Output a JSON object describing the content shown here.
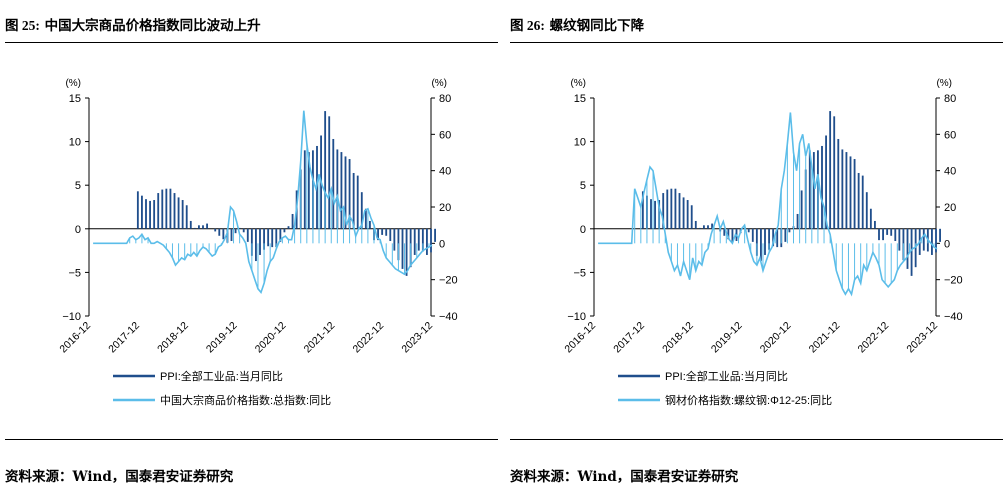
{
  "charts": [
    {
      "title_prefix": "图 25:",
      "title_text": "中国大宗商品价格指数同比波动上升",
      "source": "资料来源：Wind，国泰君安证券研究",
      "chart_data": {
        "type": "bar+line",
        "left_unit": "(%)",
        "right_unit": "(%)",
        "left_ticks": [
          "15",
          "10",
          "5",
          "0",
          "−5",
          "−10"
        ],
        "right_ticks": [
          "80",
          "60",
          "40",
          "20",
          "0",
          "−20",
          "−40"
        ],
        "ylim_left": [
          -10,
          15
        ],
        "ylim_right": [
          -40,
          80
        ],
        "x_tick_labels": [
          "2016-12",
          "2017-12",
          "2018-12",
          "2019-12",
          "2020-12",
          "2021-12",
          "2022-12",
          "2023-12"
        ],
        "legend": [
          "PPI:全部工业品:当月同比",
          "中国大宗商品价格指数:总指数:同比"
        ],
        "series": [
          {
            "name": "PPI:全部工业品:当月同比",
            "axis": "left",
            "chart": "bar",
            "color": "#1f4e8c",
            "start": "2017-01",
            "values": [
              0.0,
              0.0,
              0.0,
              0.0,
              0.0,
              0.0,
              0.0,
              0.0,
              0.0,
              0.0,
              0.0,
              4.3,
              3.8,
              3.4,
              3.2,
              3.3,
              4.1,
              4.5,
              4.6,
              4.6,
              4.1,
              3.6,
              3.3,
              2.7,
              0.9,
              0.1,
              0.4,
              0.4,
              0.6,
              0.0,
              -0.3,
              -0.8,
              -1.2,
              -1.6,
              -1.4,
              -0.5,
              0.1,
              -0.4,
              -1.5,
              -3.1,
              -3.7,
              -3.0,
              -2.4,
              -2.0,
              -2.1,
              -2.1,
              -1.5,
              -0.4,
              0.3,
              1.7,
              4.4,
              6.8,
              9.0,
              8.8,
              9.0,
              9.5,
              10.7,
              13.5,
              12.9,
              10.3,
              9.1,
              8.8,
              8.3,
              8.0,
              6.4,
              6.1,
              4.2,
              2.3,
              0.9,
              -1.3,
              -1.3,
              -0.7,
              -0.8,
              -1.4,
              -2.5,
              -3.6,
              -4.6,
              -5.4,
              -4.4,
              -3.0,
              -2.5,
              -2.6,
              -3.0,
              -2.7,
              -1.5
            ]
          },
          {
            "name": "中国大宗商品价格指数:总指数:同比",
            "axis": "right",
            "chart": "line",
            "color": "#5bbde9",
            "start": "2017-01",
            "values": [
              0,
              0,
              0,
              0,
              0,
              0,
              0,
              0,
              0,
              0,
              0,
              0,
              3,
              4,
              2,
              3,
              5,
              2,
              3,
              0,
              0,
              1,
              0,
              -1,
              -3,
              -5,
              -8,
              -12,
              -10,
              -8,
              -9,
              -6,
              -7,
              -5,
              -7,
              -4,
              -2,
              -3,
              -5,
              -7,
              -6,
              -2,
              -1,
              2,
              6,
              20,
              18,
              12,
              5,
              3,
              0,
              -10,
              -15,
              -20,
              -25,
              -27,
              -22,
              -15,
              -10,
              -8,
              -3,
              1,
              3,
              4,
              2,
              2,
              10,
              25,
              45,
              73,
              55,
              42,
              35,
              30,
              38,
              32,
              28,
              25,
              30,
              22,
              26,
              18,
              20,
              10,
              15,
              12,
              4,
              8,
              10,
              18,
              19,
              14,
              10,
              3,
              2,
              -4,
              -8,
              -10,
              -12,
              -14,
              -15,
              -16,
              -17,
              -15,
              -12,
              -10,
              -8,
              -6,
              -4,
              -3,
              -2,
              -1
            ]
          }
        ]
      }
    },
    {
      "title_prefix": "图 26:",
      "title_text": "螺纹钢同比下降",
      "source": "资料来源：Wind，国泰君安证券研究",
      "chart_data": {
        "type": "bar+line",
        "left_unit": "(%)",
        "right_unit": "(%)",
        "left_ticks": [
          "15",
          "10",
          "5",
          "0",
          "−5",
          "−10"
        ],
        "right_ticks": [
          "80",
          "60",
          "40",
          "20",
          "0",
          "−20",
          "−40"
        ],
        "ylim_left": [
          -10,
          15
        ],
        "ylim_right": [
          -40,
          80
        ],
        "x_tick_labels": [
          "2016-12",
          "2017-12",
          "2018-12",
          "2019-12",
          "2020-12",
          "2021-12",
          "2022-12",
          "2023-12"
        ],
        "legend": [
          "PPI:全部工业品:当月同比",
          "钢材价格指数:螺纹钢:Φ12-25:同比"
        ],
        "series": [
          {
            "name": "PPI:全部工业品:当月同比",
            "axis": "left",
            "chart": "bar",
            "color": "#1f4e8c",
            "start": "2017-01",
            "values": [
              0.0,
              0.0,
              0.0,
              0.0,
              0.0,
              0.0,
              0.0,
              0.0,
              0.0,
              0.0,
              0.0,
              4.3,
              3.8,
              3.4,
              3.2,
              3.3,
              4.1,
              4.5,
              4.6,
              4.6,
              4.1,
              3.6,
              3.3,
              2.7,
              0.9,
              0.1,
              0.4,
              0.4,
              0.6,
              0.0,
              -0.3,
              -0.8,
              -1.2,
              -1.6,
              -1.4,
              -0.5,
              0.1,
              -0.4,
              -1.5,
              -3.1,
              -3.7,
              -3.0,
              -2.4,
              -2.0,
              -2.1,
              -2.1,
              -1.5,
              -0.4,
              0.3,
              1.7,
              4.4,
              6.8,
              9.0,
              8.8,
              9.0,
              9.5,
              10.7,
              13.5,
              12.9,
              10.3,
              9.1,
              8.8,
              8.3,
              8.0,
              6.4,
              6.1,
              4.2,
              2.3,
              0.9,
              -1.3,
              -1.3,
              -0.7,
              -0.8,
              -1.4,
              -2.5,
              -3.6,
              -4.6,
              -5.4,
              -4.4,
              -3.0,
              -2.5,
              -2.6,
              -3.0,
              -2.7,
              -1.5
            ]
          },
          {
            "name": "钢材价格指数:螺纹钢:Φ12-25:同比",
            "axis": "right",
            "chart": "line",
            "color": "#5bbde9",
            "start": "2017-01",
            "values": [
              0,
              0,
              0,
              0,
              0,
              0,
              0,
              0,
              0,
              0,
              0,
              0,
              30,
              25,
              20,
              28,
              35,
              42,
              40,
              30,
              20,
              15,
              5,
              -5,
              -10,
              -15,
              -12,
              -18,
              -10,
              -15,
              -20,
              -8,
              -15,
              -10,
              -12,
              -5,
              -3,
              5,
              10,
              15,
              8,
              12,
              6,
              2,
              0,
              5,
              3,
              8,
              10,
              2,
              -5,
              -10,
              -12,
              -8,
              -15,
              -10,
              -5,
              -2,
              5,
              10,
              30,
              40,
              55,
              72,
              50,
              40,
              55,
              60,
              48,
              55,
              42,
              30,
              38,
              25,
              20,
              10,
              5,
              -5,
              -15,
              -20,
              -25,
              -28,
              -25,
              -28,
              -20,
              -18,
              -22,
              -12,
              -15,
              -10,
              -5,
              -8,
              -12,
              -20,
              -22,
              -24,
              -22,
              -20,
              -15,
              -12,
              -10,
              -8,
              -5,
              -3,
              -2,
              0,
              3,
              5,
              2,
              0,
              -2,
              -3
            ]
          }
        ]
      }
    }
  ]
}
